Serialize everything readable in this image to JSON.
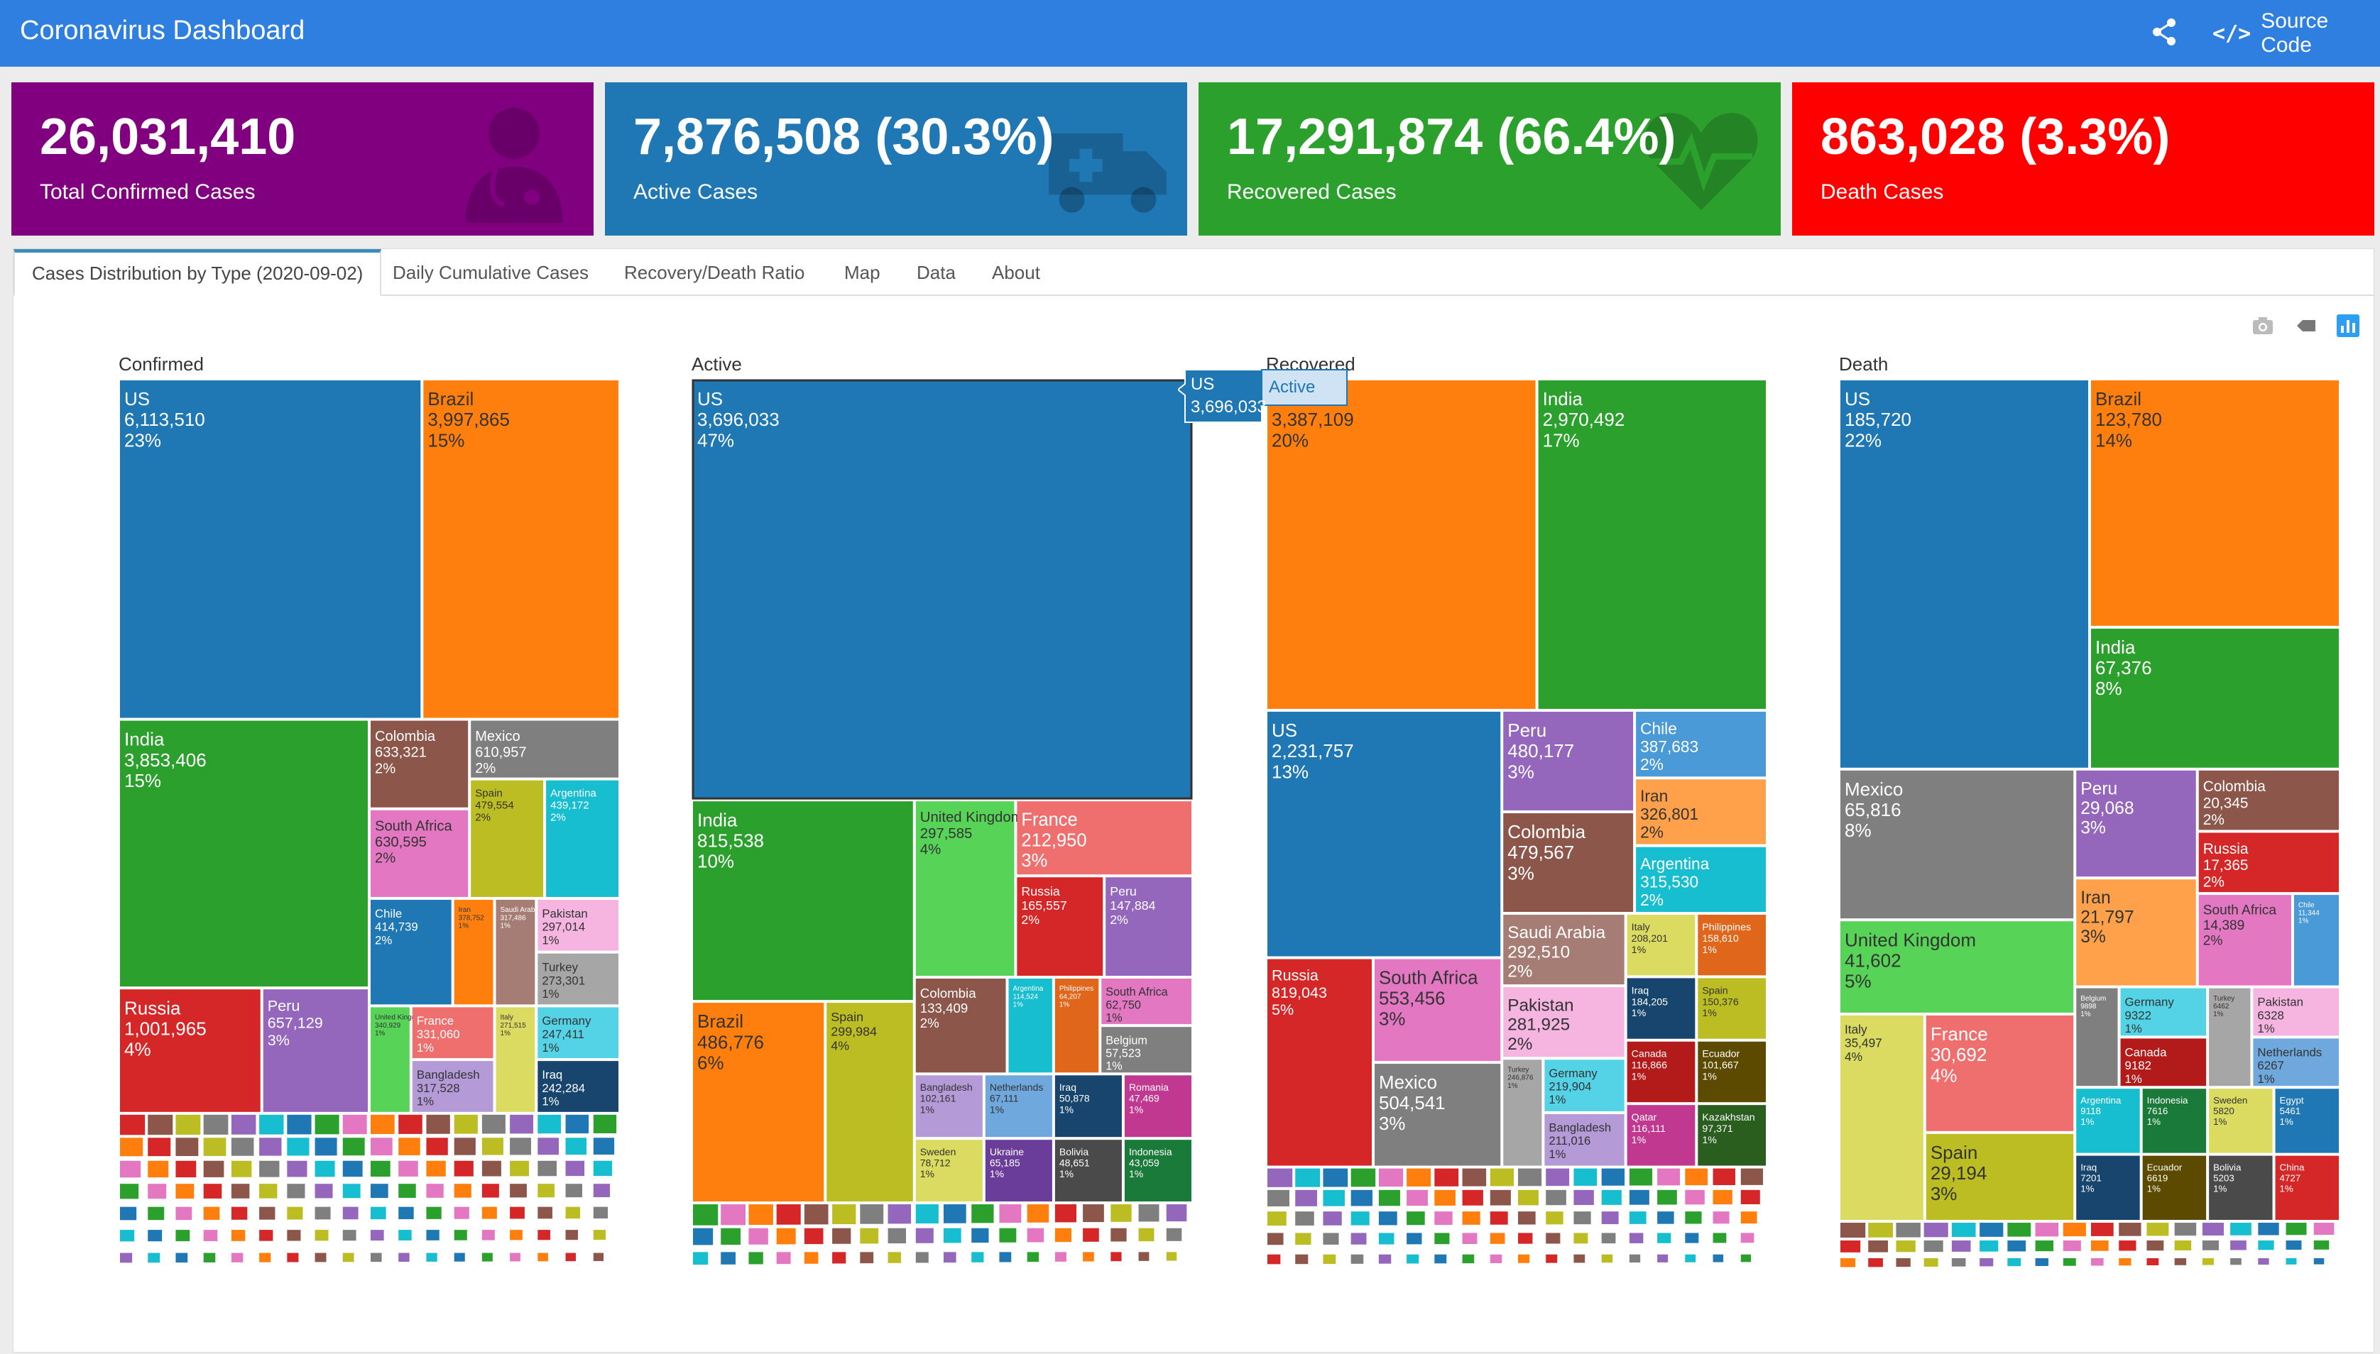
{
  "header": {
    "title": "Coronavirus Dashboard",
    "source_label": "Source Code",
    "source_icon": "code-icon",
    "share_icon": "share-icon"
  },
  "value_boxes": [
    {
      "value": "26,031,410",
      "label": "Total Confirmed Cases",
      "color": "#800080",
      "icon": "doctor-icon"
    },
    {
      "value": "7,876,508 (30.3%)",
      "label": "Active Cases",
      "color": "#1f77b4",
      "icon": "ambulance-icon"
    },
    {
      "value": "17,291,874 (66.4%)",
      "label": "Recovered Cases",
      "color": "#2ca02c",
      "icon": "heartbeat-icon"
    },
    {
      "value": "863,028 (3.3%)",
      "label": "Death Cases",
      "color": "#ff0000",
      "icon": "heartbeat-icon"
    }
  ],
  "tabs": [
    "Cases Distribution by Type (2020-09-02)",
    "Daily Cumulative Cases",
    "Recovery/Death Ratio",
    "Map",
    "Data",
    "About"
  ],
  "modebar": [
    "camera-icon",
    "eraser-icon",
    "plotly-logo-icon"
  ],
  "tooltip": {
    "label": "US",
    "value": "3,696,033",
    "trace": "Active"
  },
  "chart_data": [
    {
      "type": "treemap",
      "title": "Confirmed",
      "items": [
        {
          "label": "US",
          "value": "6,113,510",
          "pct": "23%",
          "color": "#1f77b4"
        },
        {
          "label": "Brazil",
          "value": "3,997,865",
          "pct": "15%",
          "color": "#ff7f0e"
        },
        {
          "label": "India",
          "value": "3,853,406",
          "pct": "15%",
          "color": "#2ca02c"
        },
        {
          "label": "Russia",
          "value": "1,001,965",
          "pct": "4%",
          "color": "#d62728"
        },
        {
          "label": "Peru",
          "value": "657,129",
          "pct": "3%",
          "color": "#9467bd"
        },
        {
          "label": "Colombia",
          "value": "633,321",
          "pct": "2%",
          "color": "#8c564b"
        },
        {
          "label": "South Africa",
          "value": "630,595",
          "pct": "2%",
          "color": "#e377c2"
        },
        {
          "label": "Mexico",
          "value": "610,957",
          "pct": "2%",
          "color": "#7f7f7f"
        },
        {
          "label": "Spain",
          "value": "479,554",
          "pct": "2%",
          "color": "#bcbd22"
        },
        {
          "label": "Argentina",
          "value": "439,172",
          "pct": "2%",
          "color": "#17becf"
        },
        {
          "label": "Chile",
          "value": "414,739",
          "pct": "2%",
          "color": "#1f77b4"
        },
        {
          "label": "Iran",
          "value": "378,752",
          "pct": "1%",
          "color": "#ff7f0e"
        },
        {
          "label": "United Kingdom",
          "value": "340,929",
          "pct": "1%",
          "color": "#57d357"
        },
        {
          "label": "France",
          "value": "331,060",
          "pct": "1%",
          "color": "#ef6f6f"
        },
        {
          "label": "Bangladesh",
          "value": "317,528",
          "pct": "1%",
          "color": "#b49ad6"
        },
        {
          "label": "Saudi Arabia",
          "value": "317,486",
          "pct": "1%",
          "color": "#a57d74"
        },
        {
          "label": "Pakistan",
          "value": "297,014",
          "pct": "1%",
          "color": "#f5b5e0"
        },
        {
          "label": "Turkey",
          "value": "273,301",
          "pct": "1%",
          "color": "#a6a6a6"
        },
        {
          "label": "Italy",
          "value": "271,515",
          "pct": "1%",
          "color": "#dadb60"
        },
        {
          "label": "Germany",
          "value": "247,411",
          "pct": "1%",
          "color": "#55d3e6"
        },
        {
          "label": "Iraq",
          "value": "242,284",
          "pct": "1%",
          "color": "#17456e"
        }
      ]
    },
    {
      "type": "treemap",
      "title": "Active",
      "items": [
        {
          "label": "US",
          "value": "3,696,033",
          "pct": "47%",
          "color": "#1f77b4"
        },
        {
          "label": "India",
          "value": "815,538",
          "pct": "10%",
          "color": "#2ca02c"
        },
        {
          "label": "Brazil",
          "value": "486,776",
          "pct": "6%",
          "color": "#ff7f0e"
        },
        {
          "label": "Spain",
          "value": "299,984",
          "pct": "4%",
          "color": "#bcbd22"
        },
        {
          "label": "United Kingdom",
          "value": "297,585",
          "pct": "4%",
          "color": "#57d357"
        },
        {
          "label": "France",
          "value": "212,950",
          "pct": "3%",
          "color": "#ef6f6f"
        },
        {
          "label": "Russia",
          "value": "165,557",
          "pct": "2%",
          "color": "#d62728"
        },
        {
          "label": "Peru",
          "value": "147,884",
          "pct": "2%",
          "color": "#9467bd"
        },
        {
          "label": "Colombia",
          "value": "133,409",
          "pct": "2%",
          "color": "#8c564b"
        },
        {
          "label": "Argentina",
          "value": "114,524",
          "pct": "1%",
          "color": "#17becf"
        },
        {
          "label": "Bangladesh",
          "value": "102,161",
          "pct": "1%",
          "color": "#b49ad6"
        },
        {
          "label": "Sweden",
          "value": "78,712",
          "pct": "1%",
          "color": "#dadb60"
        },
        {
          "label": "Netherlands",
          "value": "67,111",
          "pct": "1%",
          "color": "#6fa8dc"
        },
        {
          "label": "Ukraine",
          "value": "65,185",
          "pct": "1%",
          "color": "#6a3d9a"
        },
        {
          "label": "Philippines",
          "value": "64,207",
          "pct": "1%",
          "color": "#e0661c"
        },
        {
          "label": "South Africa",
          "value": "62,750",
          "pct": "1%",
          "color": "#e377c2"
        },
        {
          "label": "Belgium",
          "value": "57,523",
          "pct": "1%",
          "color": "#7f7f7f"
        },
        {
          "label": "Iraq",
          "value": "50,878",
          "pct": "1%",
          "color": "#17456e"
        },
        {
          "label": "Bolivia",
          "value": "48,651",
          "pct": "1%",
          "color": "#4a4a4a"
        },
        {
          "label": "Romania",
          "value": "47,469",
          "pct": "1%",
          "color": "#c0388f"
        },
        {
          "label": "Indonesia",
          "value": "43,059",
          "pct": "1%",
          "color": "#1a7a3a"
        }
      ]
    },
    {
      "type": "treemap",
      "title": "Recovered",
      "items": [
        {
          "label": "Brazil",
          "value": "3,387,109",
          "pct": "20%",
          "color": "#ff7f0e"
        },
        {
          "label": "India",
          "value": "2,970,492",
          "pct": "17%",
          "color": "#2ca02c"
        },
        {
          "label": "US",
          "value": "2,231,757",
          "pct": "13%",
          "color": "#1f77b4"
        },
        {
          "label": "Russia",
          "value": "819,043",
          "pct": "5%",
          "color": "#d62728"
        },
        {
          "label": "South Africa",
          "value": "553,456",
          "pct": "3%",
          "color": "#e377c2"
        },
        {
          "label": "Mexico",
          "value": "504,541",
          "pct": "3%",
          "color": "#7f7f7f"
        },
        {
          "label": "Peru",
          "value": "480,177",
          "pct": "3%",
          "color": "#9467bd"
        },
        {
          "label": "Colombia",
          "value": "479,567",
          "pct": "3%",
          "color": "#8c564b"
        },
        {
          "label": "Chile",
          "value": "387,683",
          "pct": "2%",
          "color": "#4a9ad8"
        },
        {
          "label": "Iran",
          "value": "326,801",
          "pct": "2%",
          "color": "#ffa04a"
        },
        {
          "label": "Argentina",
          "value": "315,530",
          "pct": "2%",
          "color": "#17becf"
        },
        {
          "label": "Saudi Arabia",
          "value": "292,510",
          "pct": "2%",
          "color": "#a57d74"
        },
        {
          "label": "Pakistan",
          "value": "281,925",
          "pct": "2%",
          "color": "#f5b5e0"
        },
        {
          "label": "Turkey",
          "value": "246,876",
          "pct": "1%",
          "color": "#a6a6a6"
        },
        {
          "label": "Germany",
          "value": "219,904",
          "pct": "1%",
          "color": "#55d3e6"
        },
        {
          "label": "Bangladesh",
          "value": "211,016",
          "pct": "1%",
          "color": "#b49ad6"
        },
        {
          "label": "Italy",
          "value": "208,201",
          "pct": "1%",
          "color": "#dadb60"
        },
        {
          "label": "Iraq",
          "value": "184,205",
          "pct": "1%",
          "color": "#17456e"
        },
        {
          "label": "Philippines",
          "value": "158,610",
          "pct": "1%",
          "color": "#e0661c"
        },
        {
          "label": "Spain",
          "value": "150,376",
          "pct": "1%",
          "color": "#bcbd22"
        },
        {
          "label": "Canada",
          "value": "116,866",
          "pct": "1%",
          "color": "#b31b1b"
        },
        {
          "label": "Qatar",
          "value": "116,111",
          "pct": "1%",
          "color": "#c0388f"
        },
        {
          "label": "Ecuador",
          "value": "101,667",
          "pct": "1%",
          "color": "#5c4a00"
        },
        {
          "label": "Kazakhstan",
          "value": "97,371",
          "pct": "1%",
          "color": "#2a5e1f"
        }
      ]
    },
    {
      "type": "treemap",
      "title": "Death",
      "items": [
        {
          "label": "US",
          "value": "185,720",
          "pct": "22%",
          "color": "#1f77b4"
        },
        {
          "label": "Brazil",
          "value": "123,780",
          "pct": "14%",
          "color": "#ff7f0e"
        },
        {
          "label": "India",
          "value": "67,376",
          "pct": "8%",
          "color": "#2ca02c"
        },
        {
          "label": "Mexico",
          "value": "65,816",
          "pct": "8%",
          "color": "#7f7f7f"
        },
        {
          "label": "United Kingdom",
          "value": "41,602",
          "pct": "5%",
          "color": "#57d357"
        },
        {
          "label": "Italy",
          "value": "35,497",
          "pct": "4%",
          "color": "#dadb60"
        },
        {
          "label": "France",
          "value": "30,692",
          "pct": "4%",
          "color": "#ef6f6f"
        },
        {
          "label": "Spain",
          "value": "29,194",
          "pct": "3%",
          "color": "#bcbd22"
        },
        {
          "label": "Peru",
          "value": "29,068",
          "pct": "3%",
          "color": "#9467bd"
        },
        {
          "label": "Iran",
          "value": "21,797",
          "pct": "3%",
          "color": "#ffa04a"
        },
        {
          "label": "Colombia",
          "value": "20,345",
          "pct": "2%",
          "color": "#8c564b"
        },
        {
          "label": "Russia",
          "value": "17,365",
          "pct": "2%",
          "color": "#d62728"
        },
        {
          "label": "South Africa",
          "value": "14,389",
          "pct": "2%",
          "color": "#e377c2"
        },
        {
          "label": "Chile",
          "value": "11,344",
          "pct": "1%",
          "color": "#4a9ad8"
        },
        {
          "label": "Belgium",
          "value": "9898",
          "pct": "1%",
          "color": "#7f7f7f"
        },
        {
          "label": "Germany",
          "value": "9322",
          "pct": "1%",
          "color": "#55d3e6"
        },
        {
          "label": "Canada",
          "value": "9182",
          "pct": "1%",
          "color": "#b31b1b"
        },
        {
          "label": "Argentina",
          "value": "9118",
          "pct": "1%",
          "color": "#17becf"
        },
        {
          "label": "Indonesia",
          "value": "7616",
          "pct": "1%",
          "color": "#1a7a3a"
        },
        {
          "label": "Iraq",
          "value": "7201",
          "pct": "1%",
          "color": "#17456e"
        },
        {
          "label": "Ecuador",
          "value": "6619",
          "pct": "1%",
          "color": "#5c4a00"
        },
        {
          "label": "Turkey",
          "value": "6462",
          "pct": "1%",
          "color": "#a6a6a6"
        },
        {
          "label": "Pakistan",
          "value": "6328",
          "pct": "1%",
          "color": "#f5b5e0"
        },
        {
          "label": "Netherlands",
          "value": "6267",
          "pct": "1%",
          "color": "#6fa8dc"
        },
        {
          "label": "Sweden",
          "value": "5820",
          "pct": "1%",
          "color": "#dadb60"
        },
        {
          "label": "Egypt",
          "value": "5461",
          "pct": "1%",
          "color": "#1f77b4"
        },
        {
          "label": "Bolivia",
          "value": "5203",
          "pct": "1%",
          "color": "#4a4a4a"
        },
        {
          "label": "China",
          "value": "4727",
          "pct": "1%",
          "color": "#d62728"
        }
      ]
    }
  ]
}
